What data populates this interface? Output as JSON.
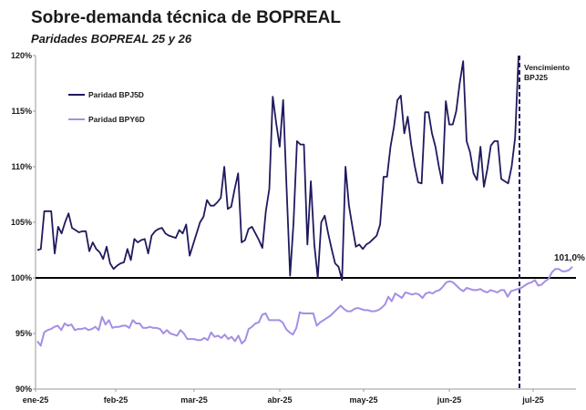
{
  "header": {
    "title": "Sobre-demanda técnica de BOPREAL",
    "subtitle": "Paridades  BOPREAL 25 y 26"
  },
  "chart_data": {
    "type": "line",
    "title": "Sobre-demanda técnica de BOPREAL",
    "subtitle": "Paridades  BOPREAL 25 y 26",
    "y_ticks": [
      "90%",
      "95%",
      "100%",
      "105%",
      "110%",
      "115%",
      "120%"
    ],
    "ylim": [
      90,
      120
    ],
    "x_ticks": [
      "ene-25",
      "feb-25",
      "mar-25",
      "abr-25",
      "may-25",
      "jun-25",
      "jul-25"
    ],
    "grid": false,
    "legend_position": "top-left",
    "reference_line": 100,
    "annotation": {
      "text_line1": "Vencimiento",
      "text_line2": "BPJ25"
    },
    "end_label": "101,0%",
    "colors": {
      "BPJ5D": "#1f1a5e",
      "BPY6D": "#a58ee6",
      "reference": "#000000"
    },
    "series": [
      {
        "name": "Paridad BPJ5D",
        "values": [
          102.5,
          102.6,
          106.0,
          106.0,
          106.0,
          102.2,
          104.6,
          104.0,
          105.0,
          105.8,
          104.5,
          104.3,
          104.1,
          104.2,
          104.2,
          102.4,
          103.2,
          102.6,
          102.3,
          101.7,
          102.8,
          101.3,
          100.8,
          101.1,
          101.3,
          101.4,
          102.6,
          101.6,
          103.5,
          103.2,
          103.4,
          103.5,
          102.2,
          103.8,
          104.2,
          104.4,
          104.5,
          104.0,
          103.8,
          103.7,
          103.6,
          104.3,
          104.0,
          104.8,
          102.0,
          103.0,
          104.0,
          105.0,
          105.5,
          107.0,
          106.5,
          106.5,
          106.8,
          107.2,
          110.0,
          106.2,
          106.4,
          108.0,
          109.4,
          103.2,
          103.4,
          104.4,
          104.6,
          104.0,
          103.4,
          102.7,
          106.0,
          108.0,
          116.3,
          113.9,
          111.8,
          116.0,
          108.0,
          100.2,
          105.0,
          112.3,
          112.0,
          112.0,
          103.0,
          108.7,
          103.0,
          100.0,
          105.0,
          105.6,
          104.0,
          102.6,
          101.3,
          101.0,
          99.8,
          110.0,
          106.5,
          104.6,
          102.8,
          103.0,
          102.6,
          103.0,
          103.2,
          103.5,
          103.8,
          104.8,
          109.1,
          109.1,
          111.8,
          113.6,
          116.0,
          116.4,
          113.0,
          114.5,
          112.0,
          110.1,
          108.6,
          108.5,
          114.9,
          114.9,
          113.0,
          111.8,
          110.0,
          108.5,
          115.9,
          113.8,
          113.8,
          115.0,
          117.5,
          119.5,
          112.3,
          111.3,
          109.4,
          108.8,
          111.8,
          108.2,
          109.8,
          111.9,
          112.3,
          112.3,
          108.9,
          108.7,
          108.5,
          110.0,
          112.6,
          120.0
        ]
      },
      {
        "name": "Paridad BPY6D",
        "values": [
          94.3,
          93.9,
          95.1,
          95.3,
          95.4,
          95.6,
          95.7,
          95.3,
          95.9,
          95.7,
          95.8,
          95.3,
          95.4,
          95.4,
          95.5,
          95.3,
          95.4,
          95.6,
          95.3,
          96.5,
          95.8,
          96.2,
          95.5,
          95.6,
          95.6,
          95.7,
          95.7,
          95.5,
          96.2,
          95.9,
          95.9,
          95.5,
          95.5,
          95.6,
          95.5,
          95.5,
          95.4,
          95.0,
          95.3,
          95.0,
          94.9,
          94.8,
          95.3,
          95.0,
          94.5,
          94.5,
          94.5,
          94.4,
          94.4,
          94.6,
          94.4,
          95.1,
          94.7,
          94.8,
          94.6,
          94.9,
          94.5,
          94.7,
          94.3,
          94.8,
          94.1,
          94.4,
          95.4,
          95.6,
          95.9,
          96.0,
          96.7,
          96.8,
          96.2,
          96.2,
          96.2,
          96.2,
          96.0,
          95.4,
          95.1,
          94.9,
          95.5,
          96.9,
          96.8,
          96.8,
          96.8,
          96.8,
          95.7,
          96.0,
          96.2,
          96.4,
          96.6,
          96.9,
          97.2,
          97.5,
          97.2,
          97.0,
          97.0,
          97.2,
          97.3,
          97.2,
          97.1,
          97.1,
          97.0,
          97.0,
          97.1,
          97.3,
          97.6,
          98.3,
          97.9,
          98.6,
          98.4,
          98.2,
          98.7,
          98.6,
          98.5,
          98.6,
          98.5,
          98.2,
          98.6,
          98.7,
          98.6,
          98.8,
          98.9,
          99.2,
          99.6,
          99.7,
          99.6,
          99.3,
          99.0,
          98.8,
          99.1,
          99.0,
          98.9,
          98.9,
          99.0,
          98.8,
          98.7,
          98.9,
          98.8,
          98.7,
          98.9,
          98.9,
          98.3,
          98.8,
          98.9,
          99.0,
          99.1,
          99.3,
          99.5,
          99.6,
          99.8,
          99.3,
          99.4,
          99.7,
          99.9,
          100.5,
          100.8,
          100.8,
          100.6,
          100.6,
          100.7,
          101.0
        ]
      }
    ]
  }
}
